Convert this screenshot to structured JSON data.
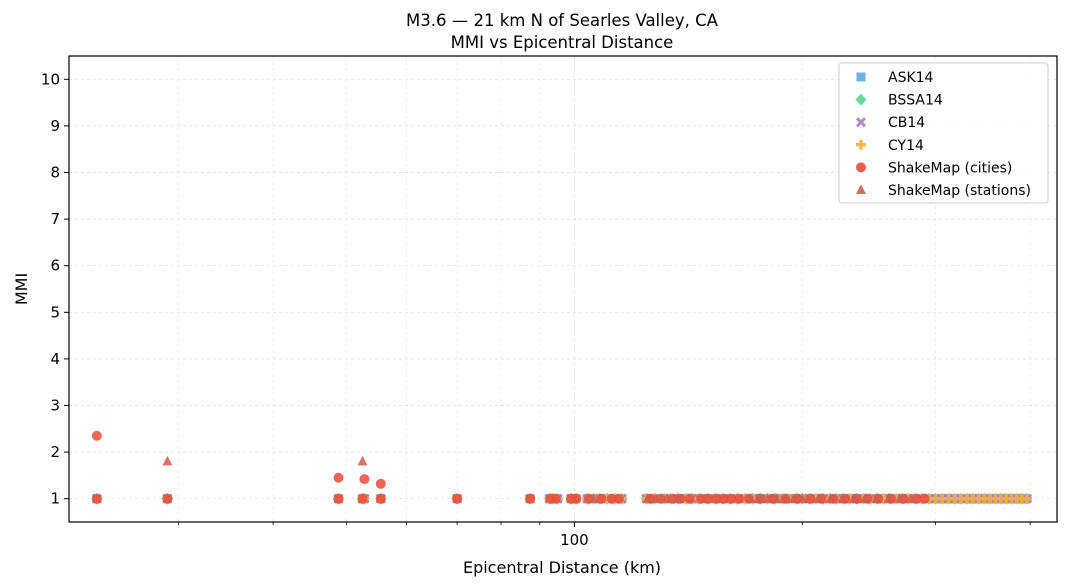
{
  "chart_data": {
    "type": "scatter",
    "title": "M3.6 — 21 km N of Searles Valley, CA",
    "subtitle": "MMI vs Epicentral Distance",
    "xlabel": "Epicentral Distance (km)",
    "ylabel": "MMI",
    "xscale": "log",
    "xlim": [
      21.5,
      434
    ],
    "ylim": [
      0.5,
      10.5
    ],
    "xticks": [
      {
        "value": 100,
        "label": "100"
      }
    ],
    "xminor_ticks": [
      30,
      40,
      50,
      60,
      70,
      80,
      90,
      200,
      300,
      400
    ],
    "yticks": [
      1,
      2,
      3,
      4,
      5,
      6,
      7,
      8,
      9,
      10
    ],
    "grid": true,
    "legend_position": "top-right",
    "gmpe_distances": [
      23.4,
      29.0,
      48.8,
      52.5,
      52.8,
      55.5,
      70.0,
      87.4,
      92.7,
      93.7,
      95.0,
      99.0,
      100.5,
      104.0,
      106.0,
      108.0,
      110.5,
      113.0,
      115.5,
      124.5,
      127.5,
      131.5,
      134.0,
      137.0,
      140.5,
      143.0,
      146.0,
      150.0,
      153.5,
      157.0,
      160.5,
      164.0,
      168.0,
      172.0,
      176.0,
      180.0,
      184.0,
      188.0,
      192.0,
      196.5,
      200.0,
      204.5,
      208.5,
      213.0,
      217.5,
      222.0,
      226.5,
      231.0,
      236.0,
      241.0,
      246.0,
      251.0,
      256.0,
      261.0,
      266.0,
      271.0,
      276.0,
      282.0,
      288.0,
      294.0,
      300.0,
      306.0,
      312.0,
      318.0,
      324.0,
      330.0,
      336.0,
      342.0,
      348.0,
      354.0,
      360.0,
      366.0,
      372.0,
      378.0,
      384.0,
      390.0,
      396.0
    ],
    "series": [
      {
        "name": "ASK14",
        "marker": "square",
        "color": "#5dade2",
        "y_constant": 1
      },
      {
        "name": "BSSA14",
        "marker": "diamond",
        "color": "#58d68d",
        "y_constant": 1
      },
      {
        "name": "CB14",
        "marker": "x",
        "color": "#af7ac5",
        "y_constant": 1
      },
      {
        "name": "CY14",
        "marker": "plus",
        "color": "#f5b041",
        "y_constant": 1
      },
      {
        "name": "ShakeMap (cities)",
        "marker": "circle",
        "color": "#e74c3c",
        "points": [
          [
            23.4,
            2.35
          ],
          [
            48.8,
            1.45
          ],
          [
            52.8,
            1.42
          ],
          [
            55.5,
            1.32
          ],
          [
            23.4,
            1.0
          ],
          [
            29.0,
            1.0
          ],
          [
            48.8,
            1.0
          ],
          [
            52.5,
            1.0
          ],
          [
            55.5,
            1.0
          ],
          [
            70.0,
            1.0
          ],
          [
            87.4,
            1.0
          ],
          [
            93.0,
            1.0
          ],
          [
            94.5,
            1.0
          ],
          [
            99.0,
            1.0
          ],
          [
            100.5,
            1.0
          ],
          [
            104.5,
            1.0
          ],
          [
            108.5,
            1.0
          ],
          [
            112.0,
            1.0
          ],
          [
            114.5,
            1.0
          ],
          [
            126.0,
            1.0
          ],
          [
            130.0,
            1.0
          ],
          [
            135.0,
            1.0
          ],
          [
            138.0,
            1.0
          ],
          [
            142.0,
            1.0
          ],
          [
            147.0,
            1.0
          ],
          [
            150.0,
            1.0
          ],
          [
            154.0,
            1.0
          ],
          [
            157.5,
            1.0
          ],
          [
            161.0,
            1.0
          ],
          [
            165.0,
            1.0
          ],
          [
            170.0,
            1.0
          ],
          [
            176.0,
            1.0
          ],
          [
            183.0,
            1.0
          ],
          [
            190.0,
            1.0
          ],
          [
            197.0,
            1.0
          ],
          [
            205.0,
            1.0
          ],
          [
            212.0,
            1.0
          ],
          [
            220.0,
            1.0
          ],
          [
            228.0,
            1.0
          ],
          [
            236.0,
            1.0
          ],
          [
            244.0,
            1.0
          ],
          [
            252.0,
            1.0
          ],
          [
            262.0,
            1.0
          ],
          [
            272.0,
            1.0
          ],
          [
            283.0,
            1.0
          ],
          [
            290.0,
            1.0
          ]
        ]
      },
      {
        "name": "ShakeMap (stations)",
        "marker": "triangle",
        "color": "#cd5c50",
        "points": [
          [
            29.0,
            1.8
          ],
          [
            52.5,
            1.8
          ],
          [
            106.0,
            1.0
          ],
          [
            125.0,
            1.0
          ],
          [
            128.0,
            1.0
          ],
          [
            132.5,
            1.0
          ],
          [
            137.0,
            1.0
          ],
          [
            171.0,
            1.0
          ],
          [
            175.0,
            1.0
          ],
          [
            180.0,
            1.0
          ],
          [
            185.0,
            1.0
          ],
          [
            190.0,
            1.0
          ],
          [
            195.0,
            1.0
          ],
          [
            200.0,
            1.0
          ],
          [
            210.0,
            1.0
          ],
          [
            218.0,
            1.0
          ],
          [
            226.0,
            1.0
          ],
          [
            234.0,
            1.0
          ],
          [
            242.0,
            1.0
          ],
          [
            251.0,
            1.0
          ],
          [
            260.0,
            1.0
          ],
          [
            269.0,
            1.0
          ],
          [
            278.0,
            1.0
          ]
        ]
      }
    ]
  }
}
